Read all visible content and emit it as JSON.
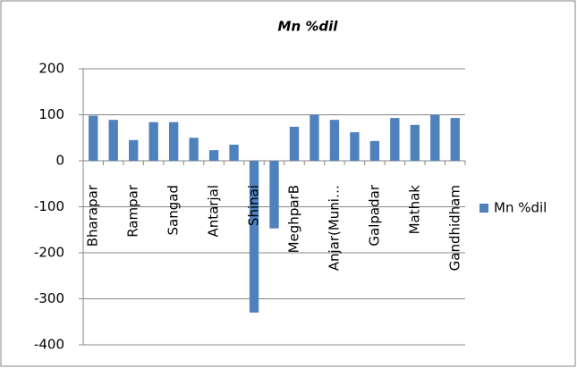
{
  "chart_data": {
    "type": "bar",
    "title": "Mn %dil",
    "categories": [
      "Bharapar",
      null,
      "Rampar",
      null,
      "Sangad",
      null,
      "Antarjal",
      null,
      "Shinai",
      null,
      "MeghparB",
      null,
      "Anjar(Muni…",
      null,
      "Galpadar",
      null,
      "Mathak",
      null,
      "Gandhidham"
    ],
    "series": [
      {
        "name": "Mn %dil",
        "color": "#4f81bd",
        "values": [
          98,
          89,
          45,
          84,
          84,
          50,
          23,
          35,
          -330,
          -147,
          74,
          100,
          89,
          62,
          43,
          93,
          78,
          100,
          93
        ]
      }
    ],
    "ylim": [
      -400,
      200
    ],
    "yticks": [
      -400,
      -300,
      -200,
      -100,
      0,
      100,
      200
    ],
    "grid": true,
    "legend": "right"
  }
}
